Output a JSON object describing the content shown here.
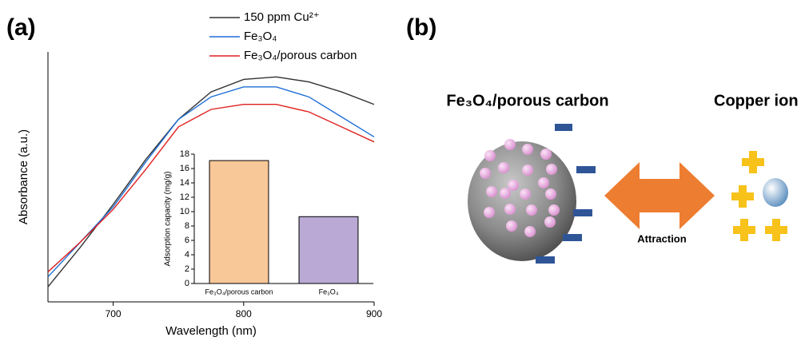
{
  "chart_data": [
    {
      "type": "line",
      "x_label": "Wavelength (nm)",
      "y_label": "Absorbance (a.u.)",
      "x": [
        650,
        675,
        700,
        725,
        750,
        775,
        800,
        825,
        850,
        875,
        900
      ],
      "series": [
        {
          "name": "150 ppm Cu²⁺",
          "color": "#333333",
          "values": [
            0.06,
            0.22,
            0.39,
            0.57,
            0.73,
            0.84,
            0.89,
            0.9,
            0.88,
            0.84,
            0.79
          ]
        },
        {
          "name": "Fe₃O₄",
          "color": "#1f6fd6",
          "values": [
            0.1,
            0.24,
            0.38,
            0.56,
            0.73,
            0.82,
            0.86,
            0.86,
            0.82,
            0.74,
            0.66
          ]
        },
        {
          "name": "Fe₃O₄/porous carbon",
          "color": "#e02020",
          "values": [
            0.12,
            0.24,
            0.37,
            0.53,
            0.7,
            0.77,
            0.79,
            0.79,
            0.76,
            0.7,
            0.64
          ]
        }
      ],
      "xlim": [
        650,
        900
      ],
      "xticks": [
        700,
        800,
        900
      ],
      "ylim": [
        0,
        1
      ]
    },
    {
      "type": "bar",
      "y_label": "Adsorption capacity (mg/g)",
      "categories": [
        "Fe₃O₄/porous carbon",
        "Fe₃O₄"
      ],
      "values": [
        17.1,
        9.3
      ],
      "colors": [
        "#f9c898",
        "#b9a9d4"
      ],
      "ylim": [
        0,
        18
      ],
      "yticks": [
        0,
        2,
        4,
        6,
        8,
        10,
        12,
        14,
        16,
        18
      ]
    }
  ],
  "diagram": {
    "panel_a": "(a)",
    "panel_b": "(b)",
    "left_label": "Fe₃O₄/porous carbon",
    "right_label": "Copper ion",
    "arrow_label": "Attraction"
  }
}
